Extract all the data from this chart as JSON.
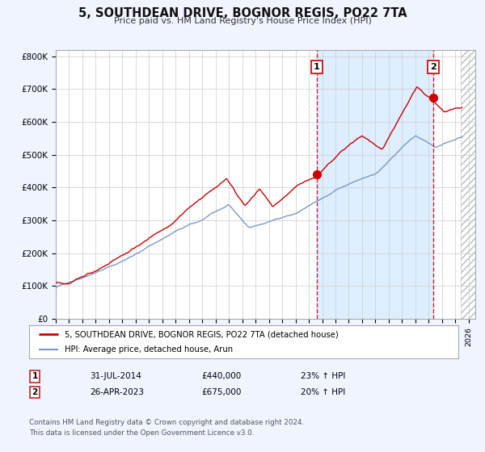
{
  "title": "5, SOUTHDEAN DRIVE, BOGNOR REGIS, PO22 7TA",
  "subtitle": "Price paid vs. HM Land Registry's House Price Index (HPI)",
  "ylim": [
    0,
    820000
  ],
  "xlim_start": 1995.0,
  "xlim_end": 2026.5,
  "yticks": [
    0,
    100000,
    200000,
    300000,
    400000,
    500000,
    600000,
    700000,
    800000
  ],
  "ytick_labels": [
    "£0",
    "£100K",
    "£200K",
    "£300K",
    "£400K",
    "£500K",
    "£600K",
    "£700K",
    "£800K"
  ],
  "bg_color": "#f0f4ff",
  "plot_bg_color": "#ffffff",
  "shade_region": [
    2014.58,
    2023.32
  ],
  "shade_color": "#ddeeff",
  "vline1_x": 2014.58,
  "vline2_x": 2023.32,
  "point1_x": 2014.58,
  "point1_y": 440000,
  "point2_x": 2023.32,
  "point2_y": 675000,
  "legend_line1": "5, SOUTHDEAN DRIVE, BOGNOR REGIS, PO22 7TA (detached house)",
  "legend_line2": "HPI: Average price, detached house, Arun",
  "red_color": "#cc0000",
  "blue_color": "#7799cc",
  "annotation1": [
    "1",
    "31-JUL-2014",
    "£440,000",
    "23% ↑ HPI"
  ],
  "annotation2": [
    "2",
    "26-APR-2023",
    "£675,000",
    "20% ↑ HPI"
  ],
  "footer": "Contains HM Land Registry data © Crown copyright and database right 2024.\nThis data is licensed under the Open Government Licence v3.0.",
  "grid_color": "#cccccc",
  "hatch_color": "#cccccc"
}
